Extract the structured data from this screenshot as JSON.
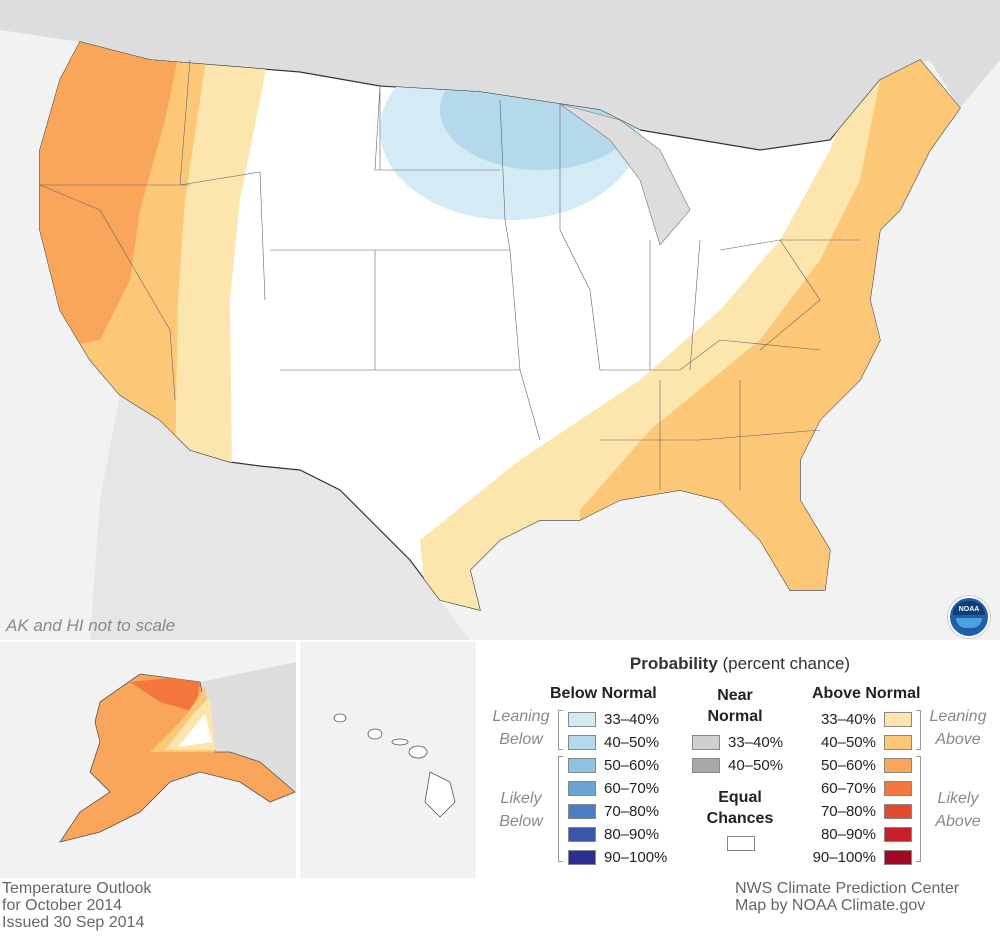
{
  "map": {
    "scale_note": "AK and HI not to scale",
    "logo_text": "NOAA"
  },
  "legend": {
    "title_bold": "Probability",
    "title_rest": " (percent chance)",
    "below": {
      "header": "Below Normal",
      "leaning_label": [
        "Leaning",
        "Below"
      ],
      "likely_label": [
        "Likely",
        "Below"
      ],
      "items": [
        {
          "label": "33–40%",
          "color": "#d4eaf5"
        },
        {
          "label": "40–50%",
          "color": "#b4d8ec"
        },
        {
          "label": "50–60%",
          "color": "#8cc3e0"
        },
        {
          "label": "60–70%",
          "color": "#68a5d2"
        },
        {
          "label": "70–80%",
          "color": "#4a7fc1"
        },
        {
          "label": "80–90%",
          "color": "#3a56a8"
        },
        {
          "label": "90–100%",
          "color": "#2b2f8f"
        }
      ]
    },
    "near": {
      "header_line1": "Near",
      "header_line2": "Normal",
      "items": [
        {
          "label": "33–40%",
          "color": "#cfcfcf"
        },
        {
          "label": "40–50%",
          "color": "#a8a8a8"
        }
      ]
    },
    "equal": {
      "line1": "Equal",
      "line2": "Chances",
      "color": "#ffffff"
    },
    "above": {
      "header": "Above Normal",
      "leaning_label": [
        "Leaning",
        "Above"
      ],
      "likely_label": [
        "Likely",
        "Above"
      ],
      "items": [
        {
          "label": "33–40%",
          "color": "#fde6ad"
        },
        {
          "label": "40–50%",
          "color": "#fcc878"
        },
        {
          "label": "50–60%",
          "color": "#f9a55a"
        },
        {
          "label": "60–70%",
          "color": "#f4773e"
        },
        {
          "label": "70–80%",
          "color": "#e24a2c"
        },
        {
          "label": "80–90%",
          "color": "#c8202a"
        },
        {
          "label": "90–100%",
          "color": "#a00a24"
        }
      ]
    }
  },
  "footer": {
    "left": [
      "Temperature Outlook",
      "for October 2014",
      "Issued 30 Sep 2014"
    ],
    "right": [
      "NWS Climate Prediction Center",
      "Map by NOAA Climate.gov"
    ]
  }
}
